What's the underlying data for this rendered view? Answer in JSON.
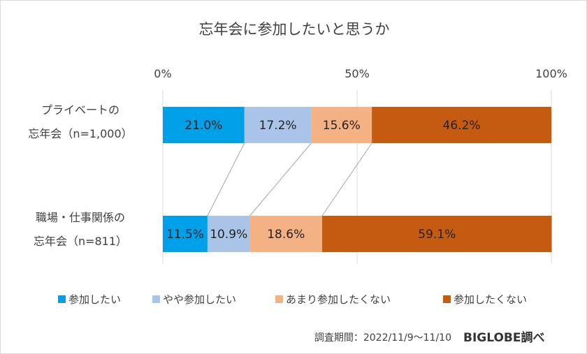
{
  "chart_data": {
    "type": "bar",
    "orientation": "horizontal",
    "stacked": true,
    "normalized": true,
    "title": "忘年会に参加したいと思うか",
    "x_ticks": [
      "0%",
      "50%",
      "100%"
    ],
    "xlim": [
      0,
      100
    ],
    "grid": true,
    "legend_position": "bottom",
    "categories": [
      [
        "プライベートの",
        "忘年会（n=1,000）"
      ],
      [
        "職場・仕事関係の",
        "忘年会（n=811）"
      ]
    ],
    "series": [
      {
        "name": "参加したい",
        "color": "#00a0e9",
        "values": [
          21.0,
          11.5
        ],
        "labels": [
          "21.0%",
          "11.5%"
        ]
      },
      {
        "name": "やや参加したい",
        "color": "#a9c4e8",
        "values": [
          17.2,
          10.9
        ],
        "labels": [
          "17.2%",
          "10.9%"
        ]
      },
      {
        "name": "あまり参加したくない",
        "color": "#f4b183",
        "values": [
          15.6,
          18.6
        ],
        "labels": [
          "15.6%",
          "18.6%"
        ]
      },
      {
        "name": "参加したくない",
        "color": "#c55a11",
        "values": [
          46.2,
          59.1
        ],
        "labels": [
          "46.2%",
          "59.1%"
        ]
      }
    ]
  },
  "footer": {
    "note": "調査期間：2022/11/9〜11/10",
    "brand": "BIGLOBE調べ"
  }
}
